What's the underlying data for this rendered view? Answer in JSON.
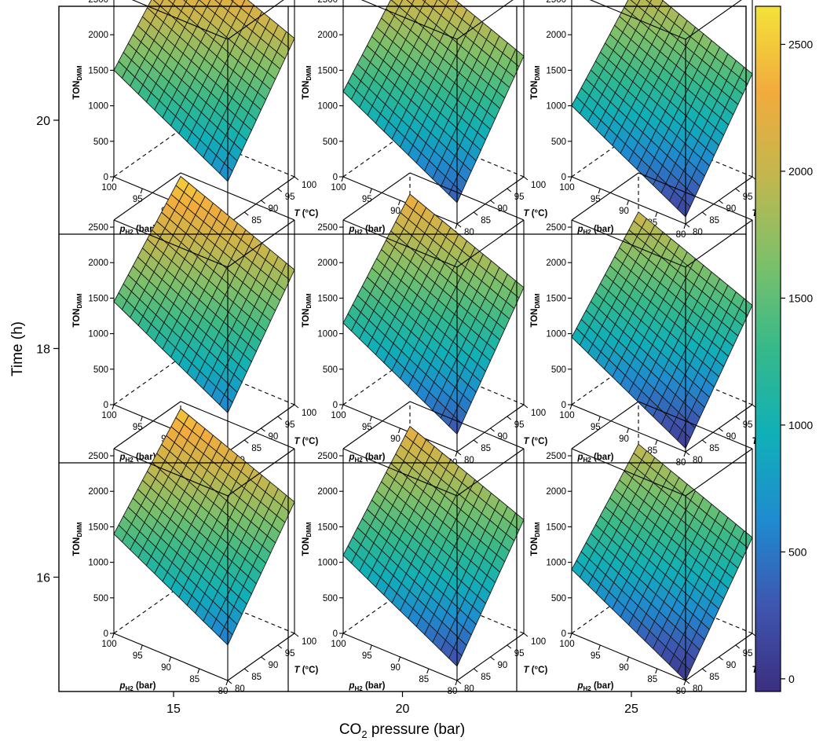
{
  "chart_data": {
    "type": "surface-grid",
    "xlabel": "CO",
    "xlabel_sub": "2",
    "xlabel_rest": " pressure (bar)",
    "ylabel": "Time (h)",
    "col_ticks": [
      "15",
      "20",
      "25"
    ],
    "row_ticks": [
      "20",
      "18",
      "16"
    ],
    "co2_values": [
      15,
      20,
      25
    ],
    "time_values": [
      20,
      18,
      16
    ],
    "panel": {
      "z_axis_label": "TON",
      "z_axis_label_sub": "DMM",
      "z_ticks": [
        "0",
        "500",
        "1000",
        "1500",
        "2000",
        "2500"
      ],
      "pH2_label_p": "p",
      "pH2_label_sub": "H2",
      "pH2_label_rest": " (bar)",
      "pH2_ticks": [
        "100",
        "95",
        "90",
        "85",
        "80"
      ],
      "T_label_T": "T",
      "T_label_rest": " (°C)",
      "T_ticks": [
        "80",
        "85",
        "90",
        "95",
        "100"
      ]
    },
    "surfaces": [
      [
        {
          "corners": {
            "p80T80": 600,
            "p100T80": 1500,
            "p80T100": 1950,
            "p100T100": 2600
          }
        },
        {
          "corners": {
            "p80T80": 300,
            "p100T80": 1200,
            "p80T100": 1700,
            "p100T100": 2350
          }
        },
        {
          "corners": {
            "p80T80": 100,
            "p100T80": 1000,
            "p80T100": 1450,
            "p100T100": 2100
          }
        }
      ],
      [
        {
          "corners": {
            "p80T80": 550,
            "p100T80": 1450,
            "p80T100": 1900,
            "p100T100": 2550
          }
        },
        {
          "corners": {
            "p80T80": 250,
            "p100T80": 1150,
            "p80T100": 1650,
            "p100T100": 2300
          }
        },
        {
          "corners": {
            "p80T80": 50,
            "p100T80": 950,
            "p80T100": 1400,
            "p100T100": 2050
          }
        }
      ],
      [
        {
          "corners": {
            "p80T80": 500,
            "p100T80": 1400,
            "p80T100": 1850,
            "p100T100": 2500
          }
        },
        {
          "corners": {
            "p80T80": 200,
            "p100T80": 1100,
            "p80T100": 1600,
            "p100T100": 2250
          }
        },
        {
          "corners": {
            "p80T80": 0,
            "p100T80": 900,
            "p80T100": 1350,
            "p100T100": 2000
          }
        }
      ]
    ],
    "zlim": [
      0,
      2600
    ],
    "colorbar": {
      "ticks": [
        "0",
        "500",
        "1000",
        "1500",
        "2000",
        "2500"
      ],
      "tick_values": [
        0,
        500,
        1000,
        1500,
        2000,
        2500
      ],
      "range": [
        -50,
        2650
      ]
    },
    "colormap": [
      "#3b2f80",
      "#3e56b0",
      "#1f8bd0",
      "#10b0b8",
      "#36b98a",
      "#7cc06a",
      "#c1b74f",
      "#f2ab3c",
      "#f3e23a"
    ]
  }
}
